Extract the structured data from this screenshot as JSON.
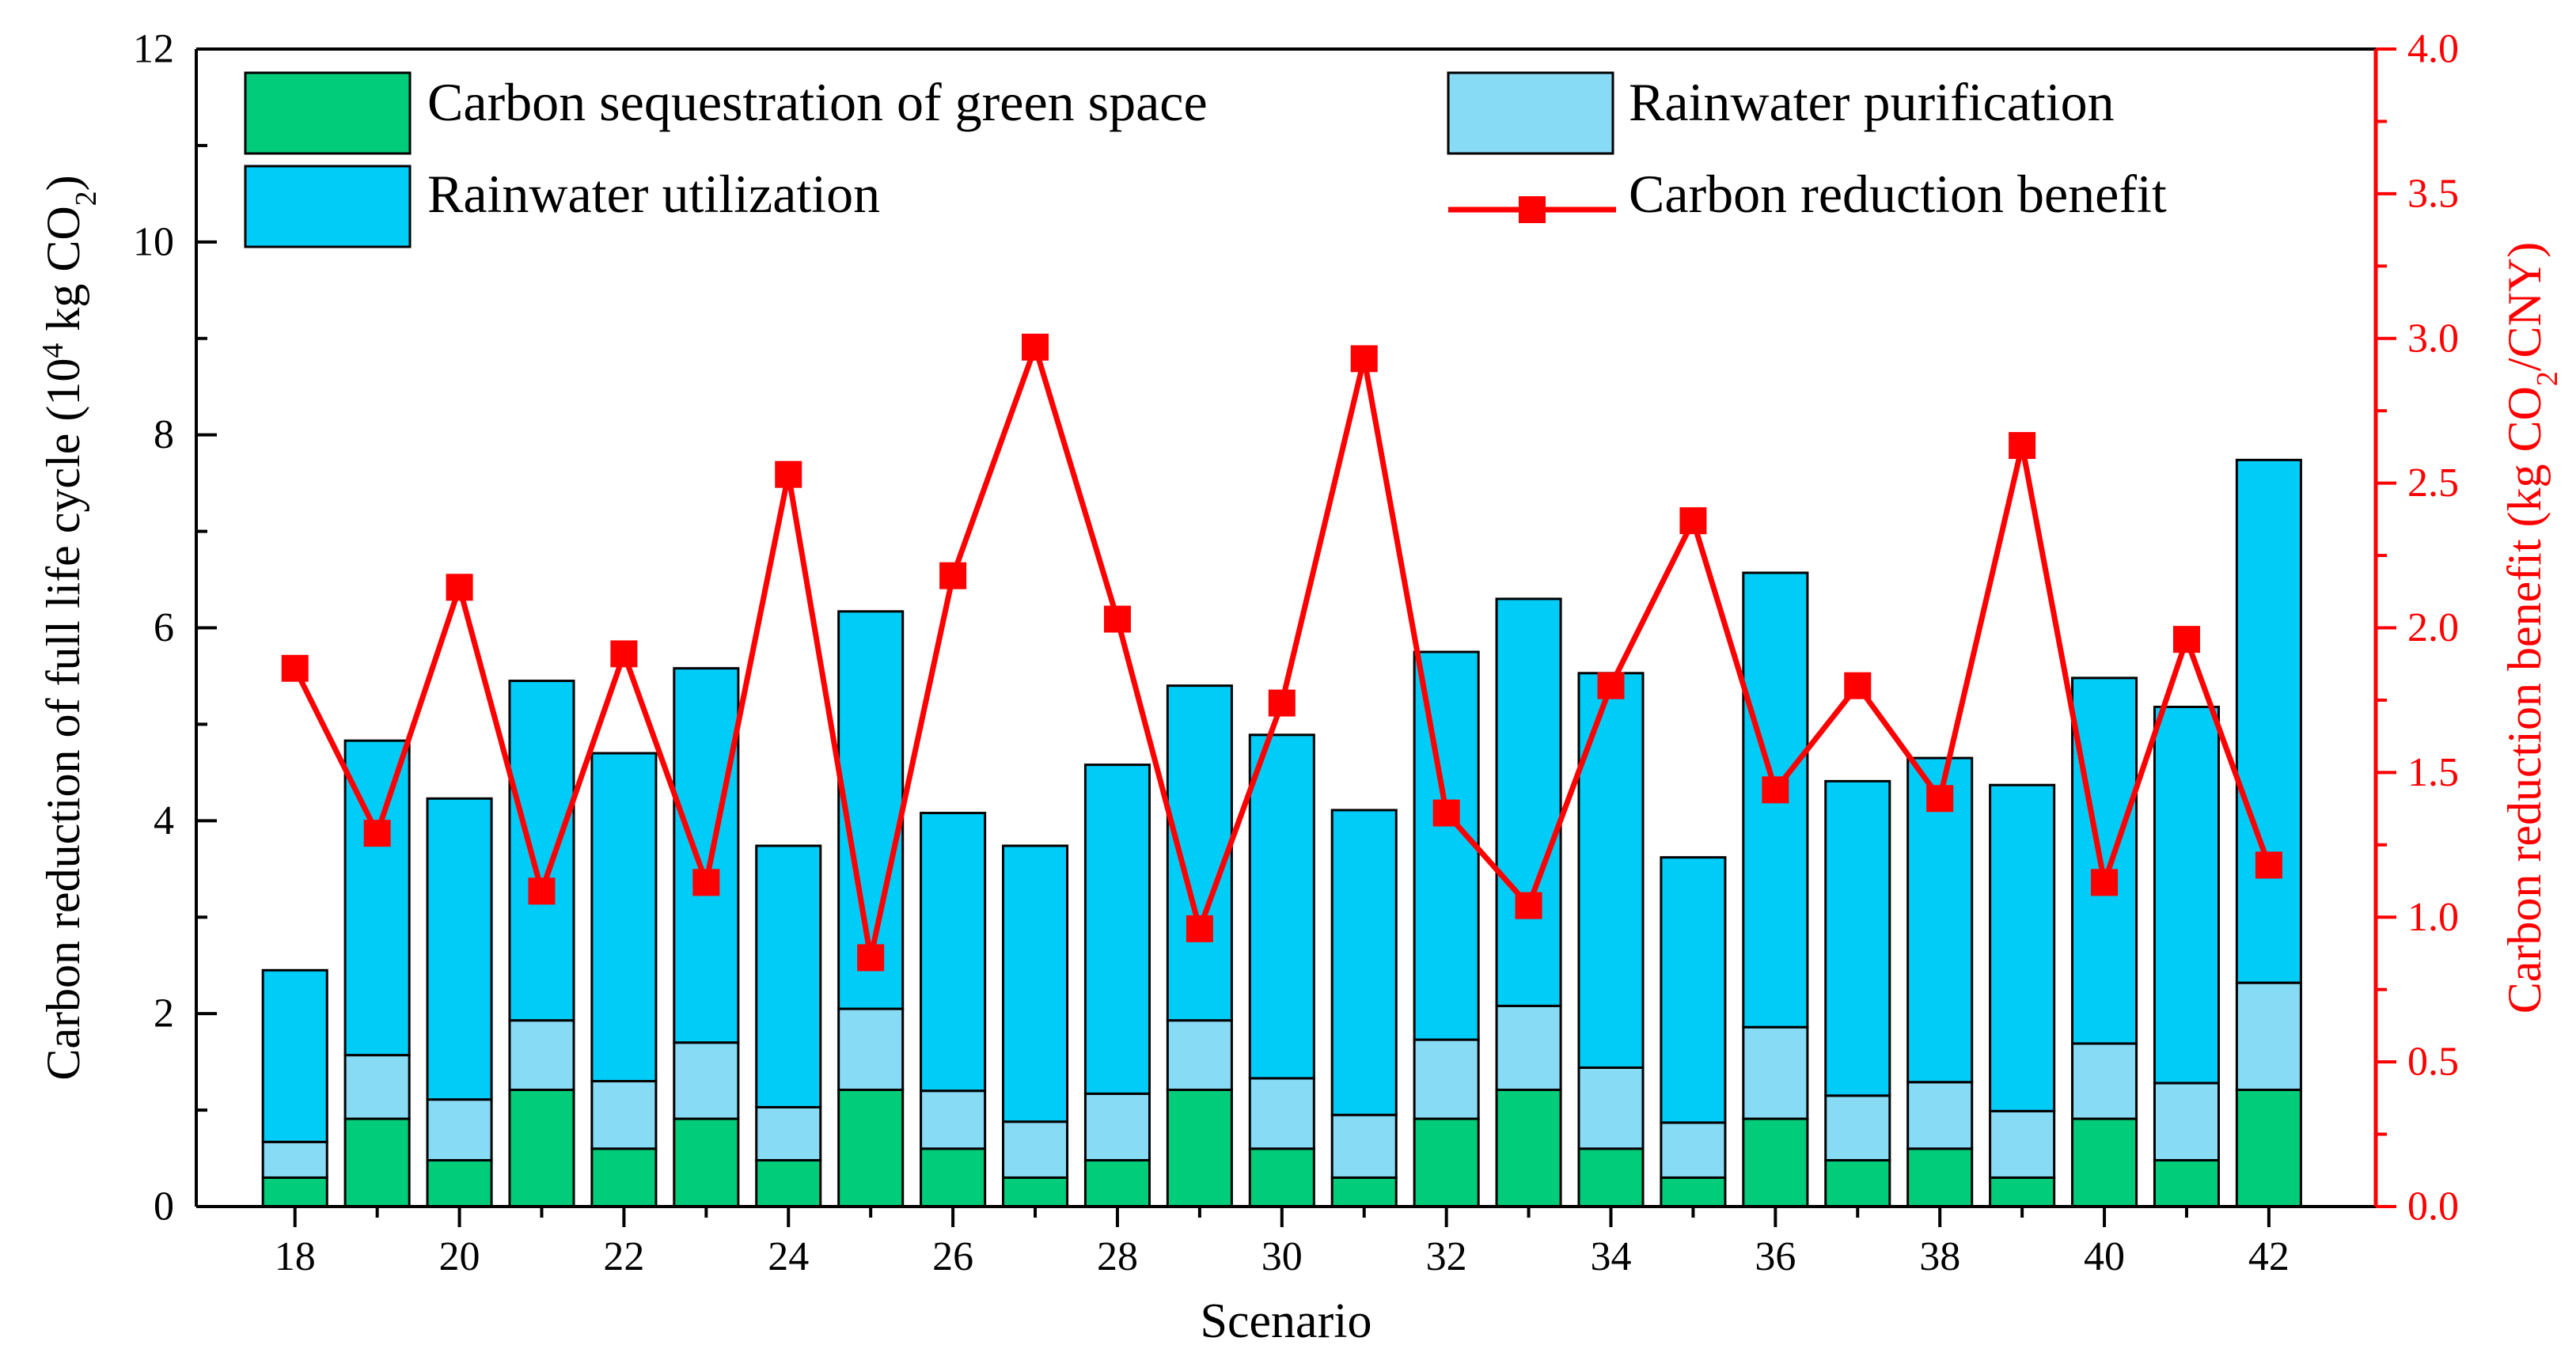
{
  "chart_data": {
    "type": "bar",
    "x": [
      18,
      19,
      20,
      21,
      22,
      23,
      24,
      25,
      26,
      27,
      28,
      29,
      30,
      31,
      32,
      33,
      34,
      35,
      36,
      37,
      38,
      39,
      40,
      41,
      42
    ],
    "xticks": [
      "18",
      "20",
      "22",
      "24",
      "26",
      "28",
      "30",
      "32",
      "34",
      "36",
      "38",
      "40",
      "42"
    ],
    "xlabel": "Scenario",
    "ylabel": "Carbon reduction of full life cycle (10",
    "ylabel_sup": "4",
    "ylabel_tail": " kg CO",
    "ylabel_sub": "2",
    "ylabel_end": ")",
    "ylim": [
      0,
      12
    ],
    "yticks": [
      "0",
      "2",
      "4",
      "6",
      "8",
      "10",
      "12"
    ],
    "y2label": "Carbon reduction benefit (kg CO",
    "y2label_sub": "2",
    "y2label_end": "/CNY)",
    "y2lim": [
      0,
      4.0
    ],
    "y2ticks": [
      "0.0",
      "0.5",
      "1.0",
      "1.5",
      "2.0",
      "2.5",
      "3.0",
      "3.5",
      "4.0"
    ],
    "series": [
      {
        "name": "Carbon sequestration of green space",
        "kind": "stacked-bar",
        "color": "#00CC7A",
        "values": [
          0.3,
          0.91,
          0.48,
          1.21,
          0.6,
          0.91,
          0.48,
          1.21,
          0.6,
          0.3,
          0.48,
          1.21,
          0.6,
          0.3,
          0.91,
          1.21,
          0.6,
          0.3,
          0.91,
          0.48,
          0.6,
          0.3,
          0.91,
          0.48,
          1.21
        ]
      },
      {
        "name": "Rainwater purification",
        "kind": "stacked-bar",
        "color": "#88DBF5",
        "values": [
          0.37,
          0.66,
          0.63,
          0.72,
          0.7,
          0.79,
          0.55,
          0.84,
          0.6,
          0.58,
          0.69,
          0.72,
          0.73,
          0.65,
          0.82,
          0.87,
          0.84,
          0.57,
          0.95,
          0.67,
          0.69,
          0.69,
          0.78,
          0.8,
          1.11
        ]
      },
      {
        "name": "Rainwater utilization",
        "kind": "stacked-bar",
        "color": "#00CCF8",
        "values": [
          1.78,
          3.26,
          3.12,
          3.52,
          3.4,
          3.88,
          2.71,
          4.12,
          2.88,
          2.86,
          3.41,
          3.47,
          3.56,
          3.16,
          4.02,
          4.22,
          4.09,
          2.75,
          4.71,
          3.26,
          3.36,
          3.38,
          3.79,
          3.9,
          5.42
        ]
      },
      {
        "name": "Carbon reduction benefit",
        "kind": "line",
        "axis": "right",
        "color": "#FF0000",
        "values": [
          1.86,
          1.29,
          2.14,
          1.09,
          1.91,
          1.12,
          2.53,
          0.86,
          2.18,
          2.97,
          2.03,
          0.96,
          1.74,
          2.93,
          1.36,
          1.04,
          1.8,
          2.37,
          1.44,
          1.8,
          1.41,
          2.63,
          1.12,
          1.96,
          1.18
        ]
      }
    ],
    "legend": "top-left, two columns",
    "grid": false
  }
}
